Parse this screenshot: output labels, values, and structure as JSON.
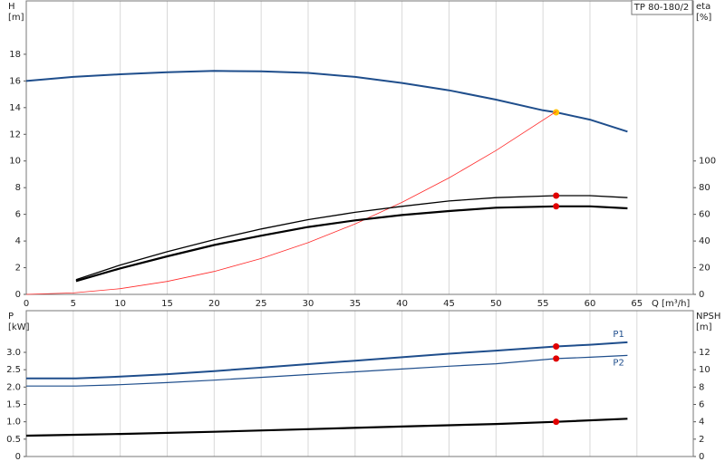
{
  "chart_data": [
    {
      "type": "line",
      "title": "TP 80-180/2",
      "ylabel": "H",
      "yunit": "[m]",
      "y2label": "eta",
      "y2unit": "[%]",
      "xlabel": "Q [m³/h]",
      "xlim": [
        0,
        71
      ],
      "xticks": [
        0,
        5,
        10,
        15,
        20,
        25,
        30,
        35,
        40,
        45,
        50,
        55,
        60,
        65
      ],
      "ylim": [
        0,
        22
      ],
      "yticks": [
        0,
        2,
        4,
        6,
        8,
        10,
        12,
        14,
        16,
        18
      ],
      "y2lim": [
        0,
        220
      ],
      "y2ticks": [
        0,
        20,
        40,
        60,
        80,
        100
      ],
      "grid": true,
      "duty_x": 56.4,
      "series": [
        {
          "color": "#1f4e8c",
          "point_color": "#ffc000",
          "x": [
            0,
            5,
            10,
            15,
            20,
            25,
            30,
            35,
            40,
            45,
            50,
            55,
            56.4,
            60,
            64
          ],
          "values": [
            16.0,
            16.3,
            16.5,
            16.65,
            16.75,
            16.72,
            16.6,
            16.3,
            15.85,
            15.3,
            14.6,
            13.8,
            13.65,
            13.1,
            12.2
          ]
        },
        {
          "color": "#ff2a2a",
          "x": [
            0,
            5,
            10,
            15,
            20,
            25,
            30,
            35,
            40,
            45,
            50,
            56.4
          ],
          "values": [
            0,
            0.11,
            0.43,
            0.97,
            1.72,
            2.69,
            3.88,
            5.28,
            6.9,
            8.73,
            10.78,
            13.7
          ]
        },
        {
          "color": "#000000",
          "point_color": "#e00000",
          "axis": "y2",
          "x": [
            5.3,
            10,
            15,
            20,
            25,
            30,
            35,
            40,
            45,
            50,
            56.4,
            60,
            64
          ],
          "values": [
            11,
            22,
            32,
            41,
            49,
            56,
            61.5,
            66,
            70,
            72.5,
            74,
            74,
            72.5
          ]
        },
        {
          "color": "#000000",
          "point_color": "#e00000",
          "axis": "y2",
          "x": [
            5.3,
            10,
            15,
            20,
            25,
            30,
            35,
            40,
            45,
            50,
            56.4,
            60,
            64
          ],
          "values": [
            10,
            19.5,
            28.5,
            37,
            44,
            50.5,
            55.5,
            59.5,
            62.5,
            65,
            66,
            66,
            64.5
          ]
        }
      ]
    },
    {
      "type": "line",
      "ylabel": "P",
      "yunit": "[kW]",
      "y2label": "NPSH",
      "y2unit": "[m]",
      "xlim": [
        0,
        71
      ],
      "xticks": [
        0,
        5,
        10,
        15,
        20,
        25,
        30,
        35,
        40,
        45,
        50,
        55,
        60,
        65
      ],
      "ylim": [
        0,
        4.2
      ],
      "yticks": [
        0,
        0.5,
        {
          "value": 1,
          "label": "1.0"
        },
        1.5,
        {
          "value": 2,
          "label": "2.0"
        },
        2.5,
        {
          "value": 3,
          "label": "3.0"
        }
      ],
      "y2lim": [
        0,
        16.8
      ],
      "y2ticks": [
        0,
        2,
        4,
        6,
        8,
        10,
        12
      ],
      "grid": true,
      "duty_x": 56.4,
      "annotations": [
        "P1",
        "P2"
      ],
      "series": [
        {
          "color": "#1f4e8c",
          "point_color": "#e00000",
          "x": [
            0,
            5.3,
            10,
            15,
            20,
            25,
            30,
            35,
            40,
            45,
            50,
            56.4,
            60,
            64
          ],
          "values": [
            2.25,
            2.25,
            2.3,
            2.37,
            2.46,
            2.56,
            2.66,
            2.76,
            2.86,
            2.96,
            3.05,
            3.17,
            3.22,
            3.29
          ]
        },
        {
          "color": "#1f4e8c",
          "point_color": "#e00000",
          "x": [
            0,
            5.3,
            10,
            15,
            20,
            25,
            30,
            35,
            40,
            45,
            50,
            56.4,
            60,
            64
          ],
          "values": [
            2.03,
            2.03,
            2.07,
            2.13,
            2.2,
            2.28,
            2.36,
            2.44,
            2.52,
            2.6,
            2.67,
            2.82,
            2.86,
            2.91
          ]
        },
        {
          "color": "#000000",
          "point_color": "#e00000",
          "axis": "y2",
          "x": [
            0,
            5.3,
            10,
            20,
            30,
            40,
            50,
            56.4,
            64
          ],
          "values": [
            2.4,
            2.5,
            2.6,
            2.85,
            3.15,
            3.45,
            3.75,
            4.0,
            4.35
          ]
        }
      ]
    }
  ]
}
